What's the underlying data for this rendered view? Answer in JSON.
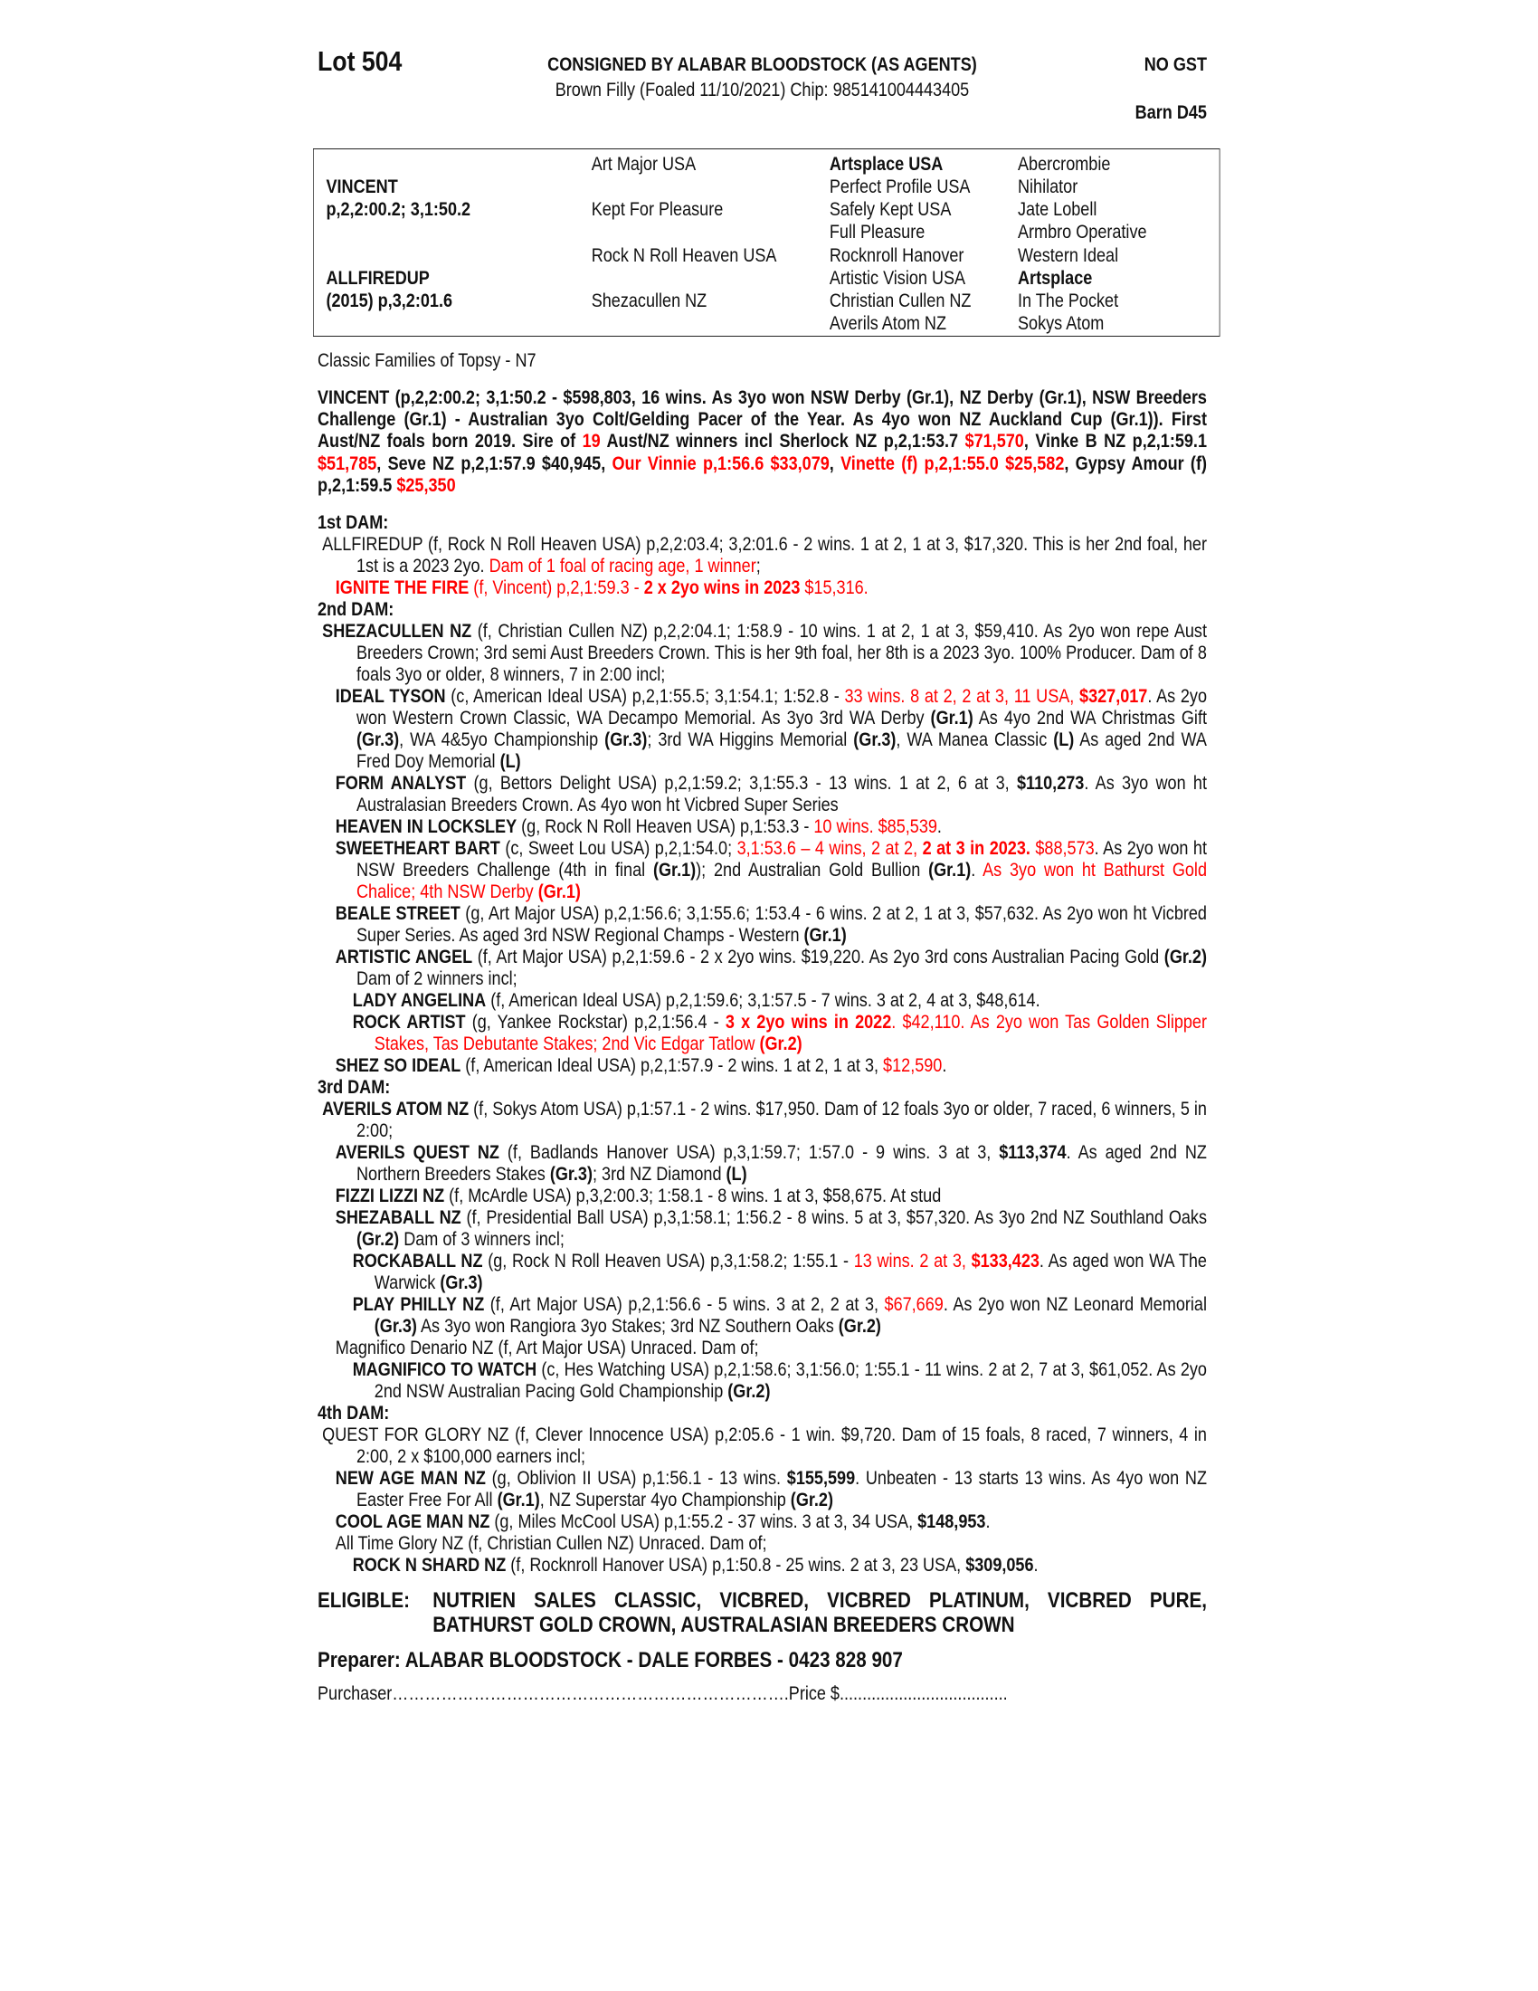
{
  "header": {
    "lot": "Lot 504",
    "consigned": "CONSIGNED BY ALABAR BLOODSTOCK (AS AGENTS)",
    "gst": "NO GST",
    "description": "Brown Filly (Foaled 11/10/2021) Chip: 985141004443405",
    "barn": "Barn D45"
  },
  "pedigree": {
    "sire_name": "VINCENT",
    "sire_record": "p,2,2:00.2; 3,1:50.2",
    "dam_name": "ALLFIREDUP",
    "dam_record": "(2015) p,3,2:01.6",
    "gen2": [
      "Art Major USA",
      "Kept For Pleasure",
      "Rock N Roll Heaven USA",
      "Shezacullen NZ"
    ],
    "gen3": [
      "Artsplace USA",
      "Perfect Profile USA",
      "Safely Kept USA",
      "Full Pleasure",
      "Rocknroll Hanover",
      "Artistic Vision USA",
      "Christian Cullen NZ",
      "Averils Atom NZ"
    ],
    "gen4": [
      "Abercrombie",
      "Nihilator",
      "Jate Lobell",
      "Armbro Operative",
      "Western Ideal",
      "Artsplace",
      "In The Pocket",
      "Sokys Atom"
    ]
  },
  "family": "Classic Families of Topsy - N7",
  "sire_paragraph": [
    [
      "VINCENT (p,2,2:00.2; 3,1:50.2 - $598,803, 16 wins. As 3yo won NSW Derby (Gr.1), NZ Derby (Gr.1), NSW Breeders Challenge (Gr.1) - Australian 3yo Colt/Gelding Pacer of the Year. As 4yo won NZ Auckland Cup (Gr.1)). First Aust/NZ foals born 2019. Sire of ",
      "b"
    ],
    [
      "19",
      "br"
    ],
    [
      " Aust/NZ winners incl Sherlock NZ p,2,1:53.7 ",
      "b"
    ],
    [
      "$71,570",
      "br"
    ],
    [
      ", Vinke B NZ p,2,1:59.1 ",
      "b"
    ],
    [
      "$51,785",
      "br"
    ],
    [
      ", Seve NZ p,2,1:57.9 $40,945, ",
      "b"
    ],
    [
      "Our Vinnie p,1:56.6 $33,079",
      "br"
    ],
    [
      ", ",
      "b"
    ],
    [
      "Vinette (f) p,2,1:55.0 $25,582",
      "br"
    ],
    [
      ", Gypsy Amour (f) p,2,1:59.5 ",
      "b"
    ],
    [
      "$25,350",
      "br"
    ]
  ],
  "dams": [
    {
      "heading": "1st DAM:",
      "entries": [
        {
          "level": 0,
          "runs": [
            [
              "ALLFIREDUP (f, Rock N Roll Heaven USA) p,2,2:03.4; 3,2:01.6 - 2 wins. 1 at 2, 1 at 3, $17,320. This is her 2nd foal, her 1st is a 2023 2yo. ",
              ""
            ],
            [
              "Dam of 1 foal of racing age, 1 winner",
              "r"
            ],
            [
              ";",
              ""
            ]
          ]
        },
        {
          "level": 1,
          "runs": [
            [
              "IGNITE THE FIRE",
              "br"
            ],
            [
              " (f, Vincent) p,2,1:59.3 - ",
              "r"
            ],
            [
              "2 x 2yo wins in 2023",
              "br"
            ],
            [
              " $15,316.",
              "r"
            ]
          ]
        }
      ]
    },
    {
      "heading": "2nd DAM:",
      "entries": [
        {
          "level": 0,
          "runs": [
            [
              "SHEZACULLEN NZ",
              "b"
            ],
            [
              " (f, Christian Cullen NZ) p,2,2:04.1; 1:58.9 - 10 wins. 1 at 2, 1 at 3, $59,410. As 2yo won repe Aust Breeders Crown; 3rd semi Aust Breeders Crown. This is her 9th foal, her 8th is a 2023 3yo. 100% Producer. Dam of 8 foals 3yo or older, 8 winners, 7 in 2:00 incl;",
              ""
            ]
          ]
        },
        {
          "level": 1,
          "runs": [
            [
              "IDEAL TYSON",
              "b"
            ],
            [
              " (c, American Ideal USA) p,2,1:55.5; 3,1:54.1; 1:52.8 - ",
              ""
            ],
            [
              "33 wins. 8 at 2, 2 at 3, 11 USA, ",
              "r"
            ],
            [
              "$327,017",
              "br"
            ],
            [
              ". As 2yo won Western Crown Classic, WA Decampo Memorial. As 3yo 3rd WA Derby ",
              ""
            ],
            [
              "(Gr.1)",
              "b"
            ],
            [
              " As 4yo 2nd WA Christmas Gift ",
              ""
            ],
            [
              "(Gr.3)",
              "b"
            ],
            [
              ", WA 4&5yo Championship ",
              ""
            ],
            [
              "(Gr.3)",
              "b"
            ],
            [
              "; 3rd WA Higgins Memorial ",
              ""
            ],
            [
              "(Gr.3)",
              "b"
            ],
            [
              ", WA Manea Classic ",
              ""
            ],
            [
              "(L)",
              "b"
            ],
            [
              " As aged 2nd WA Fred Doy Memorial ",
              ""
            ],
            [
              "(L)",
              "b"
            ]
          ]
        },
        {
          "level": 1,
          "runs": [
            [
              "FORM ANALYST",
              "b"
            ],
            [
              " (g, Bettors Delight USA) p,2,1:59.2; 3,1:55.3 - 13 wins. 1 at 2, 6 at 3, ",
              ""
            ],
            [
              "$110,273",
              "b"
            ],
            [
              ". As 3yo won ht Australasian Breeders Crown. As 4yo won ht Vicbred Super Series",
              ""
            ]
          ]
        },
        {
          "level": 1,
          "runs": [
            [
              "HEAVEN IN LOCKSLEY",
              "b"
            ],
            [
              " (g, Rock N Roll Heaven USA) p,1:53.3 - ",
              ""
            ],
            [
              "10 wins. $85,539",
              "r"
            ],
            [
              ".",
              ""
            ]
          ]
        },
        {
          "level": 1,
          "runs": [
            [
              "SWEETHEART BART",
              "b"
            ],
            [
              " (c, Sweet Lou USA) p,2,1:54.0; ",
              ""
            ],
            [
              "3,1:53.6 – 4 wins, 2 at 2, ",
              "r"
            ],
            [
              "2 at 3 in 2023.",
              "br"
            ],
            [
              " ",
              ""
            ],
            [
              "$88,573",
              "r"
            ],
            [
              ". As 2yo won ht NSW Breeders Challenge (4th in final ",
              ""
            ],
            [
              "(Gr.1)",
              "b"
            ],
            [
              "); 2nd Australian Gold Bullion ",
              ""
            ],
            [
              "(Gr.1)",
              "b"
            ],
            [
              ". ",
              ""
            ],
            [
              "As 3yo won ht Bathurst Gold Chalice; 4th NSW Derby ",
              "r"
            ],
            [
              "(Gr.1)",
              "br"
            ]
          ]
        },
        {
          "level": 1,
          "runs": [
            [
              "BEALE STREET",
              "b"
            ],
            [
              " (g, Art Major USA) p,2,1:56.6; 3,1:55.6; 1:53.4 - 6 wins. 2 at 2, 1 at 3, $57,632. As 2yo won ht Vicbred Super Series. As aged 3rd NSW Regional Champs - Western ",
              ""
            ],
            [
              "(Gr.1)",
              "b"
            ]
          ]
        },
        {
          "level": 1,
          "runs": [
            [
              "ARTISTIC ANGEL",
              "b"
            ],
            [
              " (f, Art Major USA) p,2,1:59.6 - 2 x 2yo wins. $19,220. As 2yo 3rd cons Australian Pacing Gold ",
              ""
            ],
            [
              "(Gr.2)",
              "b"
            ],
            [
              " Dam of 2 winners incl;",
              ""
            ]
          ]
        },
        {
          "level": 2,
          "runs": [
            [
              "LADY ANGELINA",
              "b"
            ],
            [
              " (f, American Ideal USA) p,2,1:59.6; 3,1:57.5 - 7 wins. 3 at 2, 4 at 3, $48,614.",
              ""
            ]
          ]
        },
        {
          "level": 2,
          "runs": [
            [
              "ROCK ARTIST",
              "b"
            ],
            [
              " (g, Yankee Rockstar) p,2,1:56.4 - ",
              ""
            ],
            [
              "3 x 2yo wins in 2022",
              "br"
            ],
            [
              ". $42,110. As 2yo won Tas Golden Slipper Stakes, Tas Debutante Stakes; 2nd Vic Edgar Tatlow ",
              "r"
            ],
            [
              "(Gr.2)",
              "br"
            ]
          ]
        },
        {
          "level": 1,
          "runs": [
            [
              "SHEZ SO IDEAL",
              "b"
            ],
            [
              " (f, American Ideal USA) p,2,1:57.9 - 2 wins. 1 at 2, 1 at 3, ",
              ""
            ],
            [
              "$12,590",
              "r"
            ],
            [
              ".",
              ""
            ]
          ]
        }
      ]
    },
    {
      "heading": "3rd DAM:",
      "entries": [
        {
          "level": 0,
          "runs": [
            [
              "AVERILS ATOM NZ",
              "b"
            ],
            [
              " (f, Sokys Atom USA) p,1:57.1 - 2 wins. $17,950. Dam of 12 foals 3yo or older, 7 raced, 6 winners, 5 in 2:00;",
              ""
            ]
          ]
        },
        {
          "level": 1,
          "runs": [
            [
              "AVERILS QUEST NZ",
              "b"
            ],
            [
              " (f, Badlands Hanover USA) p,3,1:59.7; 1:57.0 - 9 wins. 3 at 3, ",
              ""
            ],
            [
              "$113,374",
              "b"
            ],
            [
              ". As aged 2nd NZ Northern Breeders Stakes ",
              ""
            ],
            [
              "(Gr.3)",
              "b"
            ],
            [
              "; 3rd NZ Diamond ",
              ""
            ],
            [
              "(L)",
              "b"
            ]
          ]
        },
        {
          "level": 1,
          "runs": [
            [
              "FIZZI LIZZI NZ",
              "b"
            ],
            [
              " (f, McArdle USA) p,3,2:00.3; 1:58.1 - 8 wins. 1 at 3, $58,675. At stud",
              ""
            ]
          ]
        },
        {
          "level": 1,
          "runs": [
            [
              "SHEZABALL NZ",
              "b"
            ],
            [
              " (f, Presidential Ball USA) p,3,1:58.1; 1:56.2 - 8 wins. 5 at 3, $57,320. As 3yo 2nd NZ Southland Oaks ",
              ""
            ],
            [
              "(Gr.2)",
              "b"
            ],
            [
              " Dam of 3 winners incl;",
              ""
            ]
          ]
        },
        {
          "level": 2,
          "runs": [
            [
              "ROCKABALL NZ",
              "b"
            ],
            [
              " (g, Rock N Roll Heaven USA) p,3,1:58.2; 1:55.1 - ",
              ""
            ],
            [
              "13 wins. 2 at 3, ",
              "r"
            ],
            [
              "$133,423",
              "br"
            ],
            [
              ". As aged won WA The Warwick ",
              ""
            ],
            [
              "(Gr.3)",
              "b"
            ]
          ]
        },
        {
          "level": 2,
          "runs": [
            [
              "PLAY PHILLY NZ",
              "b"
            ],
            [
              " (f, Art Major USA) p,2,1:56.6 - 5 wins. 3 at 2, 2 at 3, ",
              ""
            ],
            [
              "$67,669",
              "r"
            ],
            [
              ". As 2yo won NZ Leonard Memorial ",
              ""
            ],
            [
              "(Gr.3)",
              "b"
            ],
            [
              " As 3yo won Rangiora 3yo Stakes; 3rd NZ Southern Oaks ",
              ""
            ],
            [
              "(Gr.2)",
              "b"
            ]
          ]
        },
        {
          "level": 1,
          "runs": [
            [
              "Magnifico Denario NZ (f, Art Major USA) Unraced. Dam of;",
              ""
            ]
          ]
        },
        {
          "level": 2,
          "runs": [
            [
              "MAGNIFICO TO WATCH",
              "b"
            ],
            [
              " (c, Hes Watching USA) p,2,1:58.6; 3,1:56.0; 1:55.1 - 11 wins. 2 at 2, 7 at 3, $61,052. As 2yo 2nd NSW Australian Pacing Gold Championship ",
              ""
            ],
            [
              "(Gr.2)",
              "b"
            ]
          ]
        }
      ]
    },
    {
      "heading": "4th DAM:",
      "entries": [
        {
          "level": 0,
          "runs": [
            [
              "QUEST FOR GLORY NZ (f, Clever Innocence USA) p,2:05.6 - 1 win. $9,720. Dam of 15 foals, 8 raced, 7 winners, 4 in 2:00, 2 x $100,000 earners incl;",
              ""
            ]
          ]
        },
        {
          "level": 1,
          "runs": [
            [
              "NEW AGE MAN NZ",
              "b"
            ],
            [
              " (g, Oblivion II USA) p,1:56.1 - 13 wins. ",
              ""
            ],
            [
              "$155,599",
              "b"
            ],
            [
              ". Unbeaten - 13 starts 13 wins. As 4yo won NZ Easter Free For All ",
              ""
            ],
            [
              "(Gr.1)",
              "b"
            ],
            [
              ", NZ Superstar 4yo Championship ",
              ""
            ],
            [
              "(Gr.2)",
              "b"
            ]
          ]
        },
        {
          "level": 1,
          "runs": [
            [
              "COOL AGE MAN NZ",
              "b"
            ],
            [
              " (g, Miles McCool USA) p,1:55.2 - 37 wins. 3 at 3, 34 USA, ",
              ""
            ],
            [
              "$148,953",
              "b"
            ],
            [
              ".",
              ""
            ]
          ]
        },
        {
          "level": 1,
          "runs": [
            [
              "All Time Glory NZ (f, Christian Cullen NZ) Unraced. Dam of;",
              ""
            ]
          ]
        },
        {
          "level": 2,
          "runs": [
            [
              "ROCK N SHARD NZ",
              "b"
            ],
            [
              " (f, Rocknroll Hanover USA) p,1:50.8 - 25 wins. 2 at 3, 23 USA, ",
              ""
            ],
            [
              "$309,056",
              "b"
            ],
            [
              ".",
              ""
            ]
          ]
        }
      ]
    }
  ],
  "eligible": {
    "label": "ELIGIBLE:",
    "text": "NUTRIEN SALES CLASSIC, VICBRED, VICBRED PLATINUM, VICBRED PURE, BATHURST GOLD CROWN, AUSTRALASIAN BREEDERS CROWN"
  },
  "preparer": "Preparer: ALABAR BLOODSTOCK - DALE FORBES - 0423 828 907",
  "purchaser": "Purchaser……………………………………………………………….Price $.....................................",
  "colors": {
    "highlight": "#ff0000",
    "text": "#111111"
  }
}
